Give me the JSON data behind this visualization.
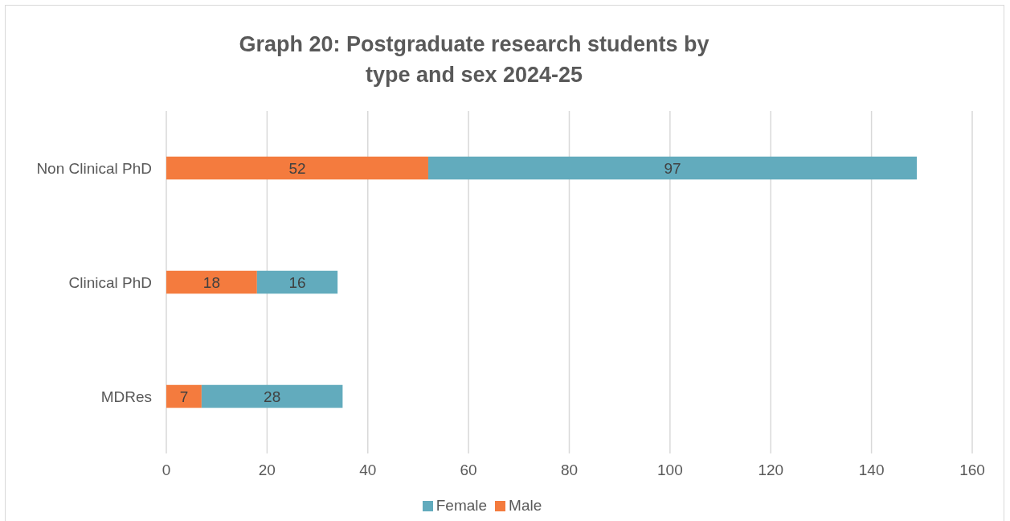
{
  "chart_data": {
    "type": "bar",
    "title": "Graph 20: Postgraduate research students by type and sex 2024-25",
    "orientation": "horizontal",
    "stacked": true,
    "categories": [
      "Non Clinical PhD",
      "Clinical PhD",
      "MDRes"
    ],
    "series": [
      {
        "name": "Male",
        "color": "#f47b3e",
        "values": [
          52,
          18,
          7
        ]
      },
      {
        "name": "Female",
        "color": "#62abbd",
        "values": [
          97,
          16,
          28
        ]
      }
    ],
    "xlim": [
      0,
      160
    ],
    "xticks": [
      0,
      20,
      40,
      60,
      80,
      100,
      120,
      140,
      160
    ],
    "grid": "x",
    "legend": "bottom",
    "data_labels": true
  }
}
